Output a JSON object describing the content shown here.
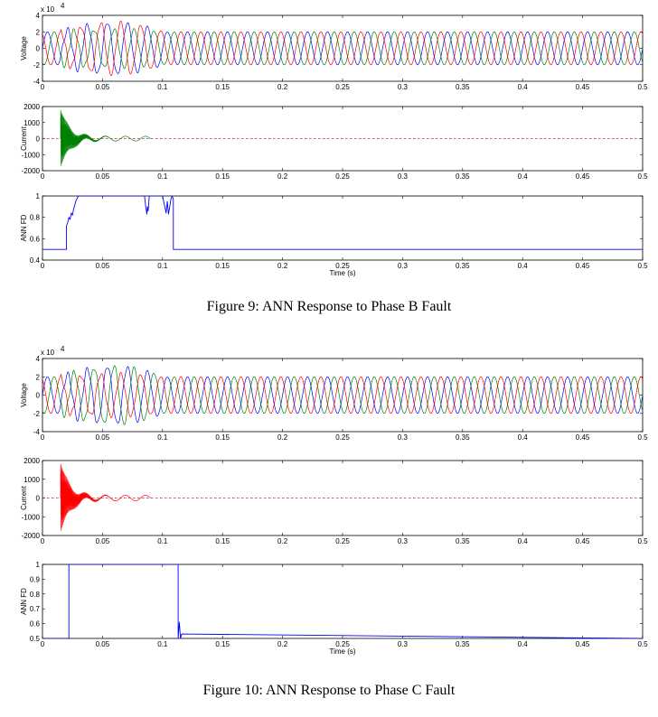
{
  "colors": {
    "phase_a": "#0000ff",
    "phase_b": "#008000",
    "phase_c": "#ff0000",
    "ann": "#0000ff",
    "axes": "#000000"
  },
  "figures": [
    {
      "caption": "Figure 9: ANN Response to Phase B Fault"
    },
    {
      "caption": "Figure 10: ANN Response to Phase C Fault"
    }
  ],
  "chart_data": [
    {
      "type": "line",
      "figure": "Figure 9",
      "panel": "voltage",
      "ylabel": "Voltage",
      "exponent_label": "x 10",
      "exponent_power": "4",
      "xlim": [
        0,
        0.5
      ],
      "ylim": [
        -4,
        4
      ],
      "xticks": [
        0,
        0.05,
        0.1,
        0.15,
        0.2,
        0.25,
        0.3,
        0.35,
        0.4,
        0.45,
        0.5
      ],
      "xtick_labels": [
        "0",
        "0.05",
        "0.1",
        "0.15",
        "0.2",
        "0.25",
        "0.3",
        "0.35",
        "0.4",
        "0.45",
        "0.5"
      ],
      "yticks": [
        -4,
        -2,
        0,
        2,
        4
      ],
      "ytick_labels": [
        "-4",
        "-2",
        "0",
        "2",
        "4"
      ],
      "signal": {
        "kind": "three_phase",
        "frequency_hz": 60,
        "amplitude": 2,
        "disturbance": [
          0.015,
          0.12
        ],
        "disturbance_amplitude": 3.3,
        "faulted_phase": "b"
      }
    },
    {
      "type": "line",
      "figure": "Figure 9",
      "panel": "current",
      "ylabel": "Current",
      "xlim": [
        0,
        0.5
      ],
      "ylim": [
        -2000,
        2000
      ],
      "xticks": [
        0,
        0.05,
        0.1,
        0.15,
        0.2,
        0.25,
        0.3,
        0.35,
        0.4,
        0.45,
        0.5
      ],
      "xtick_labels": [
        "0",
        "0.05",
        "0.1",
        "0.15",
        "0.2",
        "0.25",
        "0.3",
        "0.35",
        "0.4",
        "0.45",
        "0.5"
      ],
      "yticks": [
        -2000,
        -1000,
        0,
        1000,
        2000
      ],
      "ytick_labels": [
        "-2000",
        "-1000",
        "0",
        "1000",
        "2000"
      ],
      "signal": {
        "kind": "transient",
        "phase": "b",
        "fault_start": 0.015,
        "peak": 1800,
        "decay_time": 0.008,
        "oscillation_end": 0.09,
        "oscillation_amplitude": 150
      }
    },
    {
      "type": "line",
      "figure": "Figure 9",
      "panel": "ann",
      "ylabel": "ANN FD",
      "xlabel": "Time (s)",
      "xlim": [
        0,
        0.5
      ],
      "ylim": [
        0.4,
        1
      ],
      "xticks": [
        0,
        0.05,
        0.1,
        0.15,
        0.2,
        0.25,
        0.3,
        0.35,
        0.4,
        0.45,
        0.5
      ],
      "xtick_labels": [
        "0",
        "0.05",
        "0.1",
        "0.15",
        "0.2",
        "0.25",
        "0.3",
        "0.35",
        "0.4",
        "0.45",
        "0.5"
      ],
      "yticks": [
        0.4,
        0.6,
        0.8,
        1
      ],
      "ytick_labels": [
        "0.4",
        "0.6",
        "0.8",
        "1"
      ],
      "x": [
        0,
        0.02,
        0.02,
        0.021,
        0.022,
        0.023,
        0.024,
        0.025,
        0.026,
        0.027,
        0.028,
        0.03,
        0.085,
        0.086,
        0.087,
        0.0875,
        0.088,
        0.089,
        0.09,
        0.1,
        0.103,
        0.104,
        0.105,
        0.106,
        0.107,
        0.108,
        0.109,
        0.109,
        0.5
      ],
      "y": [
        0.5,
        0.5,
        0.72,
        0.75,
        0.8,
        0.78,
        0.84,
        0.82,
        0.88,
        0.92,
        0.96,
        1,
        1,
        0.9,
        0.83,
        0.9,
        0.86,
        1,
        1,
        1,
        0.84,
        0.95,
        0.83,
        0.9,
        0.97,
        1,
        0.97,
        0.5,
        0.5
      ]
    },
    {
      "type": "line",
      "figure": "Figure 10",
      "panel": "voltage",
      "ylabel": "Voltage",
      "exponent_label": "x 10",
      "exponent_power": "4",
      "xlim": [
        0,
        0.5
      ],
      "ylim": [
        -4,
        4
      ],
      "xticks": [
        0,
        0.05,
        0.1,
        0.15,
        0.2,
        0.25,
        0.3,
        0.35,
        0.4,
        0.45,
        0.5
      ],
      "xtick_labels": [
        "0",
        "0.05",
        "0.1",
        "0.15",
        "0.2",
        "0.25",
        "0.3",
        "0.35",
        "0.4",
        "0.45",
        "0.5"
      ],
      "yticks": [
        -4,
        -2,
        0,
        2,
        4
      ],
      "ytick_labels": [
        "-4",
        "-2",
        "0",
        "2",
        "4"
      ],
      "signal": {
        "kind": "three_phase",
        "frequency_hz": 60,
        "amplitude": 2,
        "disturbance": [
          0.015,
          0.12
        ],
        "disturbance_amplitude": 3.3,
        "faulted_phase": "c"
      }
    },
    {
      "type": "line",
      "figure": "Figure 10",
      "panel": "current",
      "ylabel": "Current",
      "xlim": [
        0,
        0.5
      ],
      "ylim": [
        -2000,
        2000
      ],
      "xticks": [
        0,
        0.05,
        0.1,
        0.15,
        0.2,
        0.25,
        0.3,
        0.35,
        0.4,
        0.45,
        0.5
      ],
      "xtick_labels": [
        "0",
        "0.05",
        "0.1",
        "0.15",
        "0.2",
        "0.25",
        "0.3",
        "0.35",
        "0.4",
        "0.45",
        "0.5"
      ],
      "yticks": [
        -2000,
        -1000,
        0,
        1000,
        2000
      ],
      "ytick_labels": [
        "-2000",
        "-1000",
        "0",
        "1000",
        "2000"
      ],
      "signal": {
        "kind": "transient",
        "phase": "c",
        "fault_start": 0.015,
        "peak": 1850,
        "decay_time": 0.008,
        "oscillation_end": 0.09,
        "oscillation_amplitude": 150
      }
    },
    {
      "type": "line",
      "figure": "Figure 10",
      "panel": "ann",
      "ylabel": "ANN FD",
      "xlabel": "Time (s)",
      "xlim": [
        0,
        0.5
      ],
      "ylim": [
        0.5,
        1
      ],
      "xticks": [
        0,
        0.05,
        0.1,
        0.15,
        0.2,
        0.25,
        0.3,
        0.35,
        0.4,
        0.45,
        0.5
      ],
      "xtick_labels": [
        "0",
        "0.05",
        "0.1",
        "0.15",
        "0.2",
        "0.25",
        "0.3",
        "0.35",
        "0.4",
        "0.45",
        "0.5"
      ],
      "yticks": [
        0.5,
        0.6,
        0.7,
        0.8,
        0.9,
        1
      ],
      "ytick_labels": [
        "0.5",
        "0.6",
        "0.7",
        "0.8",
        "0.9",
        "1"
      ],
      "x": [
        0,
        0.022,
        0.022,
        0.113,
        0.113,
        0.114,
        0.115,
        0.116,
        0.5
      ],
      "y": [
        0.5,
        0.5,
        1,
        1,
        0.5,
        0.61,
        0.5,
        0.53,
        0.5
      ]
    }
  ]
}
